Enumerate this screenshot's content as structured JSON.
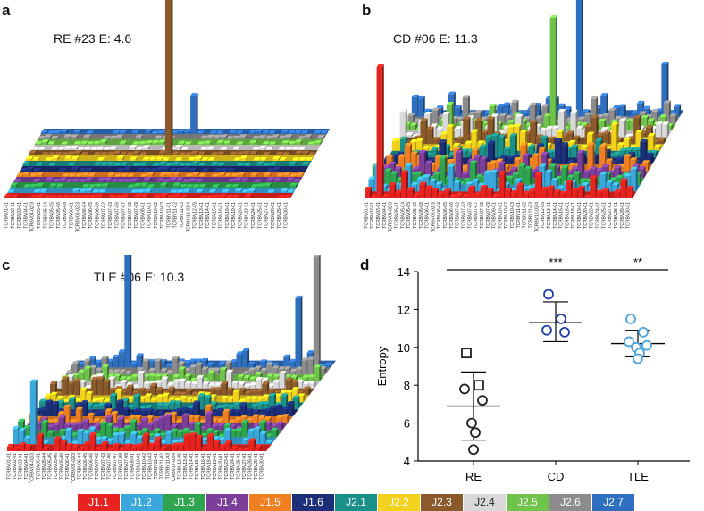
{
  "panels": {
    "a": {
      "letter": "a",
      "title": "RE #23  E: 4.6"
    },
    "b": {
      "letter": "b",
      "title": "CD #06 E: 11.3"
    },
    "c": {
      "letter": "c",
      "title": "TLE #06 E: 10.3"
    },
    "d": {
      "letter": "d"
    }
  },
  "v_genes": [
    "TCRBV01-01",
    "TCRBV02-01",
    "TCRBV03-01",
    "TCRBV04-01",
    "TCRBV04-02/3",
    "TCRBV05-01",
    "TCRBV05-04",
    "TCRBV05-05",
    "TCRBV05-06",
    "TCRBV05-08",
    "TCRBV06-01",
    "TCRBV06-02/3",
    "TCRBV06-04",
    "TCRBV06-05",
    "TCRBV06-06",
    "TCRBV07-02",
    "TCRBV07-03",
    "TCRBV07-06",
    "TCRBV07-07",
    "TCRBV07-08",
    "TCRBV07-09",
    "TCRBV09-01",
    "TCRBV10-01",
    "TCRBV10-02",
    "TCRBV10-03",
    "TCRBV11-01",
    "TCRBV11-02",
    "TCRBV11-03",
    "TCRBV12-03/4",
    "TCRBV12-05",
    "TCRBV13-01",
    "TCRBV14-01",
    "TCRBV15-01",
    "TCRBV16-01",
    "TCRBV18-01",
    "TCRBV19-01",
    "TCRBV20-01",
    "TCRBV23-01",
    "TCRBV24-01",
    "TCRBV25-01",
    "TCRBV27-01",
    "TCRBV28-01",
    "TCRBV29-01",
    "TCRBV30-01"
  ],
  "legend": [
    {
      "label": "J1.1",
      "color": "#e8221e"
    },
    {
      "label": "J1.2",
      "color": "#3aa8dc"
    },
    {
      "label": "J1.3",
      "color": "#2ea44f"
    },
    {
      "label": "J1.4",
      "color": "#7b3f9b"
    },
    {
      "label": "J1.5",
      "color": "#f07f22"
    },
    {
      "label": "J1.6",
      "color": "#1c2f78"
    },
    {
      "label": "J2.1",
      "color": "#1b8f8a"
    },
    {
      "label": "J2.2",
      "color": "#f2d21c"
    },
    {
      "label": "J2.3",
      "color": "#8a5a2b"
    },
    {
      "label": "J2.4",
      "color": "#d9d9d9"
    },
    {
      "label": "J2.5",
      "color": "#6fc24a"
    },
    {
      "label": "J2.6",
      "color": "#8c8c8c"
    },
    {
      "label": "J2.7",
      "color": "#2f6fc0"
    }
  ],
  "chart_data": [
    {
      "type": "scatter",
      "panel": "d",
      "ylabel": "Entropy",
      "ylim": [
        4,
        14
      ],
      "yticks": [
        4,
        6,
        8,
        10,
        12,
        14
      ],
      "categories": [
        "RE",
        "CD",
        "TLE"
      ],
      "groups": [
        {
          "name": "RE",
          "color": "#222222",
          "points": [
            {
              "y": 9.7,
              "marker": "square"
            },
            {
              "y": 8.0,
              "marker": "square"
            },
            {
              "y": 7.8,
              "marker": "circle"
            },
            {
              "y": 7.2,
              "marker": "circle"
            },
            {
              "y": 6.0,
              "marker": "circle"
            },
            {
              "y": 5.5,
              "marker": "circle"
            },
            {
              "y": 4.6,
              "marker": "circle"
            }
          ],
          "mean": 6.9,
          "sd_upper": 8.7,
          "sd_lower": 5.1
        },
        {
          "name": "CD",
          "color": "#1f3fa8",
          "points": [
            {
              "y": 12.8,
              "marker": "circle"
            },
            {
              "y": 11.5,
              "marker": "circle"
            },
            {
              "y": 10.9,
              "marker": "circle"
            },
            {
              "y": 10.8,
              "marker": "circle"
            }
          ],
          "mean": 11.3,
          "sd_upper": 12.4,
          "sd_lower": 10.3
        },
        {
          "name": "TLE",
          "color": "#4aa3e0",
          "points": [
            {
              "y": 11.5,
              "marker": "circle"
            },
            {
              "y": 10.8,
              "marker": "circle"
            },
            {
              "y": 10.3,
              "marker": "circle"
            },
            {
              "y": 10.1,
              "marker": "circle"
            },
            {
              "y": 10.0,
              "marker": "circle"
            },
            {
              "y": 9.7,
              "marker": "circle"
            },
            {
              "y": 9.4,
              "marker": "circle"
            }
          ],
          "mean": 10.2,
          "sd_upper": 10.9,
          "sd_lower": 9.5
        }
      ],
      "significance": [
        {
          "label": "***",
          "over": "CD"
        },
        {
          "label": "**",
          "over": "TLE"
        }
      ]
    },
    {
      "type": "bar",
      "panel": "a",
      "x": "v_genes",
      "series_colors_from": "legend",
      "peaks": [
        {
          "v_index": 21,
          "row": 8,
          "value": 1.0
        },
        {
          "v_index": 23,
          "row": 12,
          "value": 0.22
        }
      ]
    },
    {
      "type": "bar",
      "panel": "b",
      "x": "v_genes",
      "series_colors_from": "legend",
      "peaks": [
        {
          "v_index": 2,
          "row": 0,
          "value": 0.7
        },
        {
          "v_index": 24,
          "row": 10,
          "value": 0.6
        },
        {
          "v_index": 27,
          "row": 12,
          "value": 1.0
        },
        {
          "v_index": 41,
          "row": 12,
          "value": 0.28
        }
      ]
    },
    {
      "type": "bar",
      "panel": "c",
      "x": "v_genes",
      "series_colors_from": "legend",
      "peaks": [
        {
          "v_index": 3,
          "row": 1,
          "value": 0.45
        },
        {
          "v_index": 9,
          "row": 12,
          "value": 1.0
        },
        {
          "v_index": 38,
          "row": 12,
          "value": 0.5
        },
        {
          "v_index": 42,
          "row": 11,
          "value": 0.85
        }
      ]
    }
  ]
}
